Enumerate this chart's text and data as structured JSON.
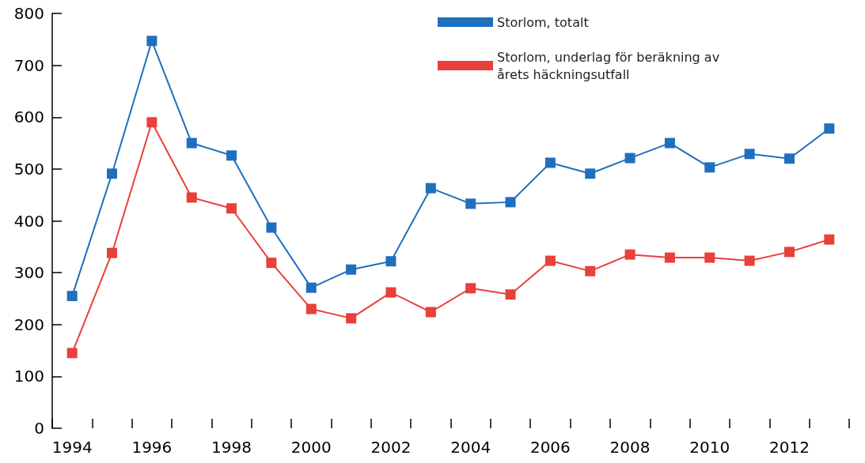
{
  "chart_data": {
    "type": "line",
    "categories": [
      "1994",
      null,
      "1996",
      null,
      "1998",
      null,
      "2000",
      null,
      "2002",
      null,
      "2004",
      null,
      "2006",
      null,
      "2008",
      null,
      "2010",
      null,
      "2012",
      null
    ],
    "series": [
      {
        "name": "Storlom, totalt",
        "color": "#1f6fbf",
        "values": [
          255,
          491,
          747,
          550,
          526,
          387,
          271,
          306,
          322,
          463,
          433,
          436,
          512,
          491,
          521,
          550,
          503,
          529,
          520,
          578
        ]
      },
      {
        "name": "Storlom, underlag för beräkning av årets häckningsutfall",
        "color": "#e8403a",
        "values": [
          145,
          338,
          590,
          445,
          424,
          319,
          230,
          212,
          262,
          224,
          270,
          258,
          323,
          303,
          335,
          329,
          329,
          323,
          340,
          364
        ]
      }
    ],
    "ylim": [
      0,
      800
    ],
    "yticks": [
      0,
      100,
      200,
      300,
      400,
      500,
      600,
      700,
      800
    ],
    "grid": false,
    "legend": "top right",
    "marker": "square",
    "line_style": "solid"
  }
}
